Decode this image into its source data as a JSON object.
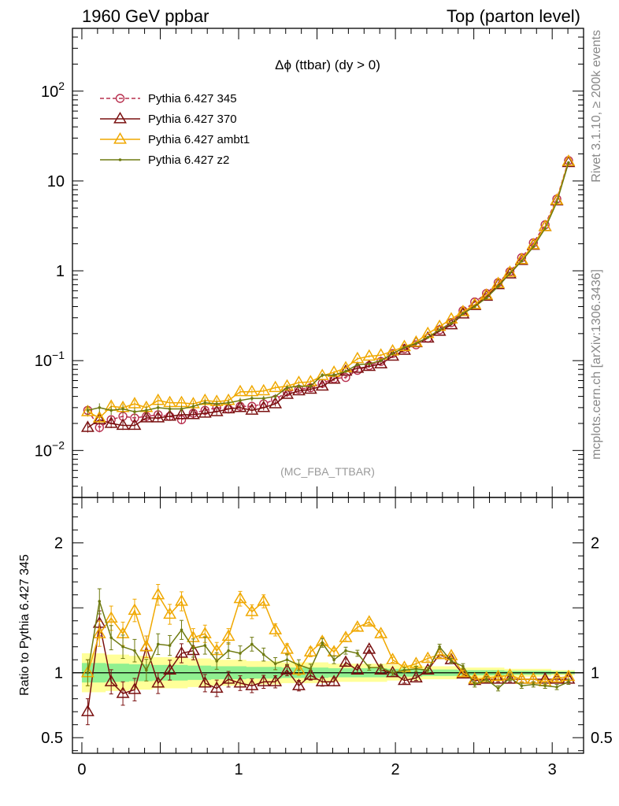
{
  "header": {
    "left": "1960 GeV ppbar",
    "right": "Top (parton level)"
  },
  "side_labels": {
    "rivet": "Rivet 3.1.10, ≥ 200k events",
    "mcplots": "mcplots.cern.ch [arXiv:1306.3436]"
  },
  "chart_data": [
    {
      "type": "line",
      "title": "Δϕ (ttbar) (dy > 0)",
      "annotation": "(MC_FBA_TTBAR)",
      "yscale": "log",
      "xlim": [
        -0.06,
        3.2
      ],
      "ylim": [
        0.003,
        500
      ],
      "yticks": [
        {
          "value": 0.01,
          "base": "10",
          "exp": "−2"
        },
        {
          "value": 0.1,
          "base": "10",
          "exp": "−1"
        },
        {
          "value": 1,
          "base": "1",
          "exp": ""
        },
        {
          "value": 10,
          "base": "10",
          "exp": ""
        },
        {
          "value": 100,
          "base": "10",
          "exp": "2"
        }
      ],
      "legend_position": "top-left",
      "series": [
        {
          "name": "Pythia 6.427 345",
          "color": "#b8304f",
          "marker": "circle",
          "dash": true,
          "y": [
            0.028,
            0.018,
            0.022,
            0.024,
            0.023,
            0.024,
            0.025,
            0.024,
            0.022,
            0.026,
            0.028,
            0.03,
            0.029,
            0.031,
            0.031,
            0.033,
            0.037,
            0.045,
            0.048,
            0.05,
            0.056,
            0.063,
            0.065,
            0.078,
            0.088,
            0.098,
            0.12,
            0.136,
            0.15,
            0.178,
            0.22,
            0.265,
            0.36,
            0.45,
            0.56,
            0.74,
            0.98,
            1.4,
            2.05,
            3.25,
            6.3,
            16.9
          ]
        },
        {
          "name": "Pythia 6.427 370",
          "color": "#7a1010",
          "marker": "triangle",
          "dash": false,
          "y": [
            0.018,
            0.022,
            0.02,
            0.019,
            0.019,
            0.023,
            0.023,
            0.024,
            0.025,
            0.025,
            0.026,
            0.027,
            0.029,
            0.03,
            0.028,
            0.03,
            0.033,
            0.042,
            0.046,
            0.048,
            0.052,
            0.062,
            0.076,
            0.082,
            0.086,
            0.092,
            0.112,
            0.13,
            0.158,
            0.178,
            0.212,
            0.25,
            0.33,
            0.41,
            0.52,
            0.7,
            0.92,
            1.3,
            1.92,
            3.1,
            6.0,
            16.0
          ]
        },
        {
          "name": "Pythia 6.427 ambt1",
          "color": "#f0a800",
          "marker": "triangle",
          "dash": false,
          "y": [
            0.027,
            0.023,
            0.031,
            0.03,
            0.033,
            0.03,
            0.036,
            0.034,
            0.034,
            0.033,
            0.036,
            0.035,
            0.036,
            0.045,
            0.045,
            0.046,
            0.05,
            0.052,
            0.057,
            0.058,
            0.068,
            0.074,
            0.083,
            0.105,
            0.112,
            0.115,
            0.128,
            0.143,
            0.16,
            0.2,
            0.24,
            0.29,
            0.35,
            0.42,
            0.535,
            0.72,
            0.96,
            1.33,
            1.95,
            3.1,
            6.1,
            16.5
          ]
        },
        {
          "name": "Pythia 6.427 z2",
          "color": "#6e7a10",
          "marker": "dot",
          "dash": false,
          "y": [
            0.028,
            0.03,
            0.028,
            0.029,
            0.027,
            0.028,
            0.03,
            0.029,
            0.029,
            0.031,
            0.034,
            0.033,
            0.034,
            0.036,
            0.038,
            0.038,
            0.04,
            0.05,
            0.052,
            0.052,
            0.069,
            0.069,
            0.076,
            0.09,
            0.092,
            0.1,
            0.12,
            0.14,
            0.155,
            0.182,
            0.22,
            0.26,
            0.335,
            0.4,
            0.5,
            0.67,
            0.94,
            1.28,
            1.85,
            2.95,
            5.8,
            16.0
          ]
        }
      ]
    },
    {
      "type": "line",
      "ylabel": "Ratio to Pythia 6.427 345",
      "xlim": [
        -0.06,
        3.2
      ],
      "ylim": [
        0.38,
        2.35
      ],
      "xticks": [
        0,
        1,
        2,
        3
      ],
      "yticks": [
        0.5,
        1,
        2
      ],
      "reference": 1,
      "bands": [
        {
          "name": "1 sigma",
          "color": "#90f090",
          "halfwidth": [
            0.075,
            0.075,
            0.07,
            0.07,
            0.065,
            0.065,
            0.06,
            0.06,
            0.06,
            0.055,
            0.055,
            0.05,
            0.05,
            0.05,
            0.045,
            0.045,
            0.045,
            0.04,
            0.04,
            0.04,
            0.04,
            0.035,
            0.035,
            0.035,
            0.035,
            0.035,
            0.03,
            0.03,
            0.03,
            0.025,
            0.025,
            0.025,
            0.02,
            0.02,
            0.02,
            0.02,
            0.015,
            0.015,
            0.015,
            0.015,
            0.01,
            0.01
          ]
        },
        {
          "name": "2 sigma",
          "color": "#ffff99",
          "halfwidth": [
            0.15,
            0.15,
            0.14,
            0.14,
            0.13,
            0.13,
            0.12,
            0.12,
            0.12,
            0.11,
            0.11,
            0.1,
            0.1,
            0.1,
            0.09,
            0.09,
            0.09,
            0.08,
            0.08,
            0.08,
            0.08,
            0.07,
            0.07,
            0.07,
            0.07,
            0.07,
            0.06,
            0.06,
            0.06,
            0.05,
            0.05,
            0.05,
            0.04,
            0.04,
            0.04,
            0.04,
            0.03,
            0.03,
            0.03,
            0.03,
            0.02,
            0.02
          ]
        }
      ],
      "series": [
        {
          "name": "Pythia 6.427 370",
          "color": "#7a1010",
          "marker": "triangle",
          "y": [
            0.7,
            1.38,
            0.93,
            0.84,
            0.87,
            1.2,
            0.92,
            1.02,
            1.15,
            1.17,
            0.92,
            0.88,
            0.95,
            0.92,
            0.9,
            0.93,
            0.93,
            1.02,
            0.9,
            0.98,
            0.93,
            0.93,
            1.08,
            1.02,
            1.18,
            1.02,
            1.0,
            0.94,
            0.96,
            1.02,
            1.14,
            1.1,
            0.99,
            0.94,
            0.95,
            0.95,
            0.95,
            0.95,
            0.95,
            0.95,
            0.95,
            0.95
          ]
        },
        {
          "name": "Pythia 6.427 ambt1",
          "color": "#f0a800",
          "marker": "triangle",
          "y": [
            1.0,
            1.3,
            1.42,
            1.3,
            1.48,
            1.2,
            1.6,
            1.45,
            1.55,
            1.27,
            1.3,
            1.17,
            1.28,
            1.57,
            1.47,
            1.55,
            1.33,
            1.18,
            1.02,
            1.16,
            1.24,
            1.16,
            1.27,
            1.35,
            1.39,
            1.3,
            1.1,
            1.04,
            1.07,
            1.11,
            1.14,
            1.13,
            1.0,
            0.95,
            0.96,
            0.97,
            0.98,
            0.95,
            0.95,
            0.93,
            0.96,
            0.97
          ]
        },
        {
          "name": "Pythia 6.427 z2",
          "color": "#6e7a10",
          "marker": "dot",
          "y": [
            1.0,
            1.55,
            1.27,
            1.2,
            1.17,
            1.02,
            1.22,
            1.21,
            1.33,
            1.19,
            1.21,
            1.09,
            1.17,
            1.15,
            1.22,
            1.14,
            1.07,
            1.1,
            1.06,
            1.03,
            1.23,
            1.1,
            1.17,
            1.15,
            1.04,
            1.04,
            1.0,
            1.02,
            1.03,
            1.02,
            1.2,
            1.09,
            1.05,
            0.91,
            0.95,
            0.88,
            0.96,
            0.9,
            0.91,
            0.9,
            0.89,
            0.93
          ]
        }
      ]
    }
  ]
}
